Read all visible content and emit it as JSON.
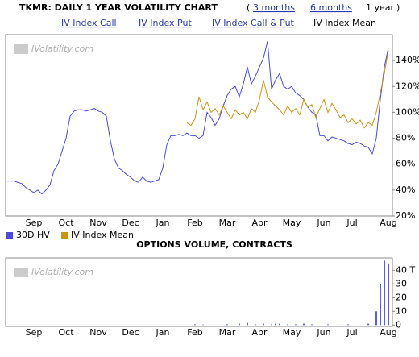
{
  "header": {
    "title": "TKMR: DAILY 1 YEAR VOLATILITY CHART",
    "open": "(",
    "close": ")",
    "ranges": [
      "3 months",
      "6 months"
    ],
    "current_range": "1 year",
    "tabs": [
      "IV Index Call",
      "IV Index Put",
      "IV Index Call & Put"
    ],
    "current_tab": "IV Index Mean"
  },
  "chart_data": [
    {
      "type": "line",
      "watermark": "IVolatility.com",
      "categories": [
        null,
        null,
        null,
        null,
        null,
        null,
        null,
        "Sep",
        null,
        null,
        null,
        null,
        null,
        null,
        null,
        "Oct",
        null,
        null,
        null,
        null,
        null,
        null,
        null,
        "Nov",
        null,
        null,
        null,
        null,
        null,
        null,
        null,
        "Dec",
        null,
        null,
        null,
        null,
        null,
        null,
        null,
        "Jan",
        null,
        null,
        null,
        null,
        null,
        null,
        null,
        "Feb",
        null,
        null,
        null,
        null,
        null,
        null,
        null,
        "Mar",
        null,
        null,
        null,
        null,
        null,
        null,
        null,
        "Apr",
        null,
        null,
        null,
        null,
        null,
        null,
        null,
        "May",
        null,
        null,
        null,
        null,
        null,
        null,
        null,
        "Jun",
        null,
        null,
        null,
        null,
        null,
        null,
        "Jul",
        null,
        null,
        null,
        null,
        null,
        null,
        null,
        null,
        "Aug"
      ],
      "series": [
        {
          "name": "30D HV",
          "color": "#4a4ade",
          "values": [
            47,
            47,
            47,
            46,
            45,
            42,
            40,
            38,
            40,
            37,
            40,
            44,
            55,
            60,
            70,
            80,
            97,
            101,
            102,
            102,
            101,
            102,
            103,
            101,
            100,
            97,
            78,
            64,
            57,
            55,
            52,
            50,
            47,
            46,
            50,
            47,
            46,
            47,
            48,
            57,
            75,
            82,
            82,
            83,
            82,
            84,
            82,
            82,
            80,
            82,
            100,
            96,
            90,
            95,
            105,
            113,
            118,
            120,
            112,
            122,
            135,
            122,
            128,
            135,
            142,
            155,
            118,
            125,
            130,
            120,
            118,
            120,
            115,
            113,
            110,
            104,
            100,
            98,
            82,
            82,
            78,
            81,
            80,
            79,
            78,
            76,
            75,
            77,
            76,
            74,
            73,
            68,
            80,
            110,
            135,
            150
          ]
        },
        {
          "name": "IV Index Mean",
          "color": "#c8960a",
          "values": [
            null,
            null,
            null,
            null,
            null,
            null,
            null,
            null,
            null,
            null,
            null,
            null,
            null,
            null,
            null,
            null,
            null,
            null,
            null,
            null,
            null,
            null,
            null,
            null,
            null,
            null,
            null,
            null,
            null,
            null,
            null,
            null,
            null,
            null,
            null,
            null,
            null,
            null,
            null,
            null,
            null,
            null,
            null,
            null,
            null,
            92,
            90,
            95,
            112,
            102,
            108,
            100,
            103,
            98,
            105,
            100,
            95,
            102,
            98,
            100,
            95,
            103,
            100,
            110,
            125,
            112,
            108,
            105,
            102,
            98,
            105,
            100,
            103,
            98,
            110,
            104,
            106,
            96,
            103,
            110,
            100,
            107,
            102,
            96,
            98,
            92,
            95,
            91,
            94,
            88,
            92,
            90,
            100,
            115,
            130,
            148
          ]
        }
      ],
      "ylim": [
        20,
        160
      ],
      "yticks": [
        {
          "value": 20,
          "label": "20%"
        },
        {
          "value": 40,
          "label": "40%"
        },
        {
          "value": 60,
          "label": "60%"
        },
        {
          "value": 80,
          "label": "80%"
        },
        {
          "value": 100,
          "label": "100%"
        },
        {
          "value": 120,
          "label": "120%"
        },
        {
          "value": 140,
          "label": "140%"
        }
      ]
    },
    {
      "type": "bar",
      "title": "OPTIONS VOLUME, CONTRACTS",
      "watermark": "IVolatility.com",
      "color": "#5a5aee",
      "categories": [
        null,
        null,
        null,
        null,
        null,
        null,
        null,
        "Sep",
        null,
        null,
        null,
        null,
        null,
        null,
        null,
        "Oct",
        null,
        null,
        null,
        null,
        null,
        null,
        null,
        "Nov",
        null,
        null,
        null,
        null,
        null,
        null,
        null,
        "Dec",
        null,
        null,
        null,
        null,
        null,
        null,
        null,
        "Jan",
        null,
        null,
        null,
        null,
        null,
        null,
        null,
        "Feb",
        null,
        null,
        null,
        null,
        null,
        null,
        null,
        "Mar",
        null,
        null,
        null,
        null,
        null,
        null,
        null,
        "Apr",
        null,
        null,
        null,
        null,
        null,
        null,
        null,
        "May",
        null,
        null,
        null,
        null,
        null,
        null,
        null,
        "Jun",
        null,
        null,
        null,
        null,
        null,
        null,
        "Jul",
        null,
        null,
        null,
        null,
        null,
        null,
        null,
        null,
        "Aug"
      ],
      "values": [
        0,
        0,
        0,
        0,
        0,
        0,
        0,
        0,
        0,
        0,
        0,
        0,
        0,
        0,
        0,
        0,
        0,
        0,
        0,
        0,
        0,
        0,
        0,
        0,
        0,
        0,
        0,
        0,
        0,
        0,
        0,
        0,
        0,
        0,
        0,
        0,
        0,
        0,
        0,
        0,
        0,
        0,
        0,
        0,
        0,
        0,
        0,
        0.5,
        0,
        0.3,
        0,
        0,
        0,
        0,
        0,
        0.5,
        0,
        0,
        1,
        0,
        1.5,
        0,
        0.5,
        0,
        1,
        0,
        0.5,
        1,
        1,
        0,
        0.5,
        0,
        0.5,
        0,
        1,
        0,
        0.5,
        0,
        0,
        0,
        0.5,
        0,
        0,
        0,
        0,
        0.5,
        0,
        0,
        0,
        0,
        1,
        0,
        10,
        30,
        47,
        45
      ],
      "ylim": [
        -1,
        49
      ],
      "yticks": [
        0,
        10,
        20,
        30,
        {
          "value": 40,
          "label": "40 T"
        }
      ]
    }
  ]
}
